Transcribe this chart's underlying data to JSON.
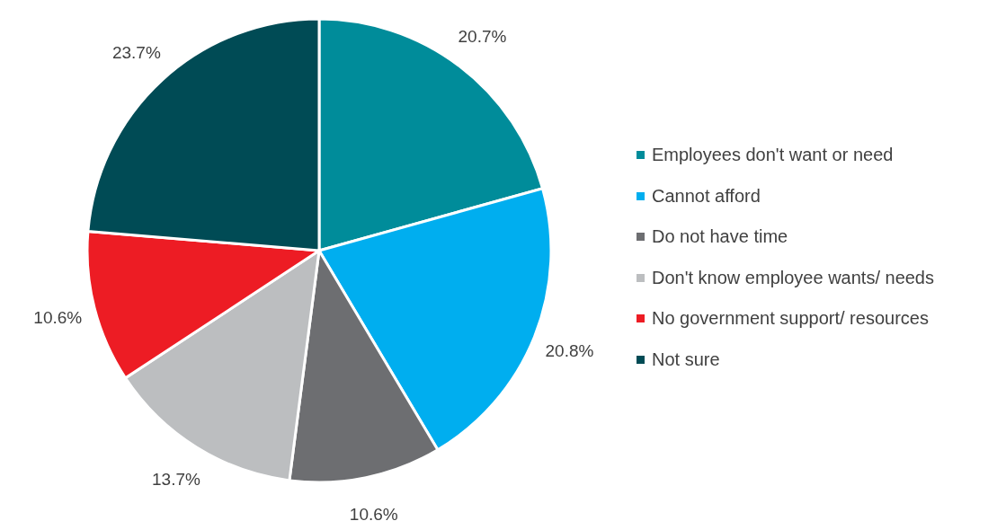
{
  "chart_data": {
    "type": "pie",
    "categories": [
      "Employees don't want or need",
      "Cannot afford",
      "Do not have time",
      "Don't know employee wants/ needs",
      "No government support/ resources",
      "Not sure"
    ],
    "values": [
      20.7,
      20.8,
      10.6,
      13.7,
      10.6,
      23.7
    ],
    "value_labels": [
      "20.7%",
      "20.8%",
      "10.6%",
      "13.7%",
      "10.6%",
      "23.7%"
    ],
    "colors": [
      "#008c9a",
      "#00aeef",
      "#6d6e71",
      "#bcbec0",
      "#ed1c24",
      "#004b55"
    ],
    "legend": "right"
  }
}
